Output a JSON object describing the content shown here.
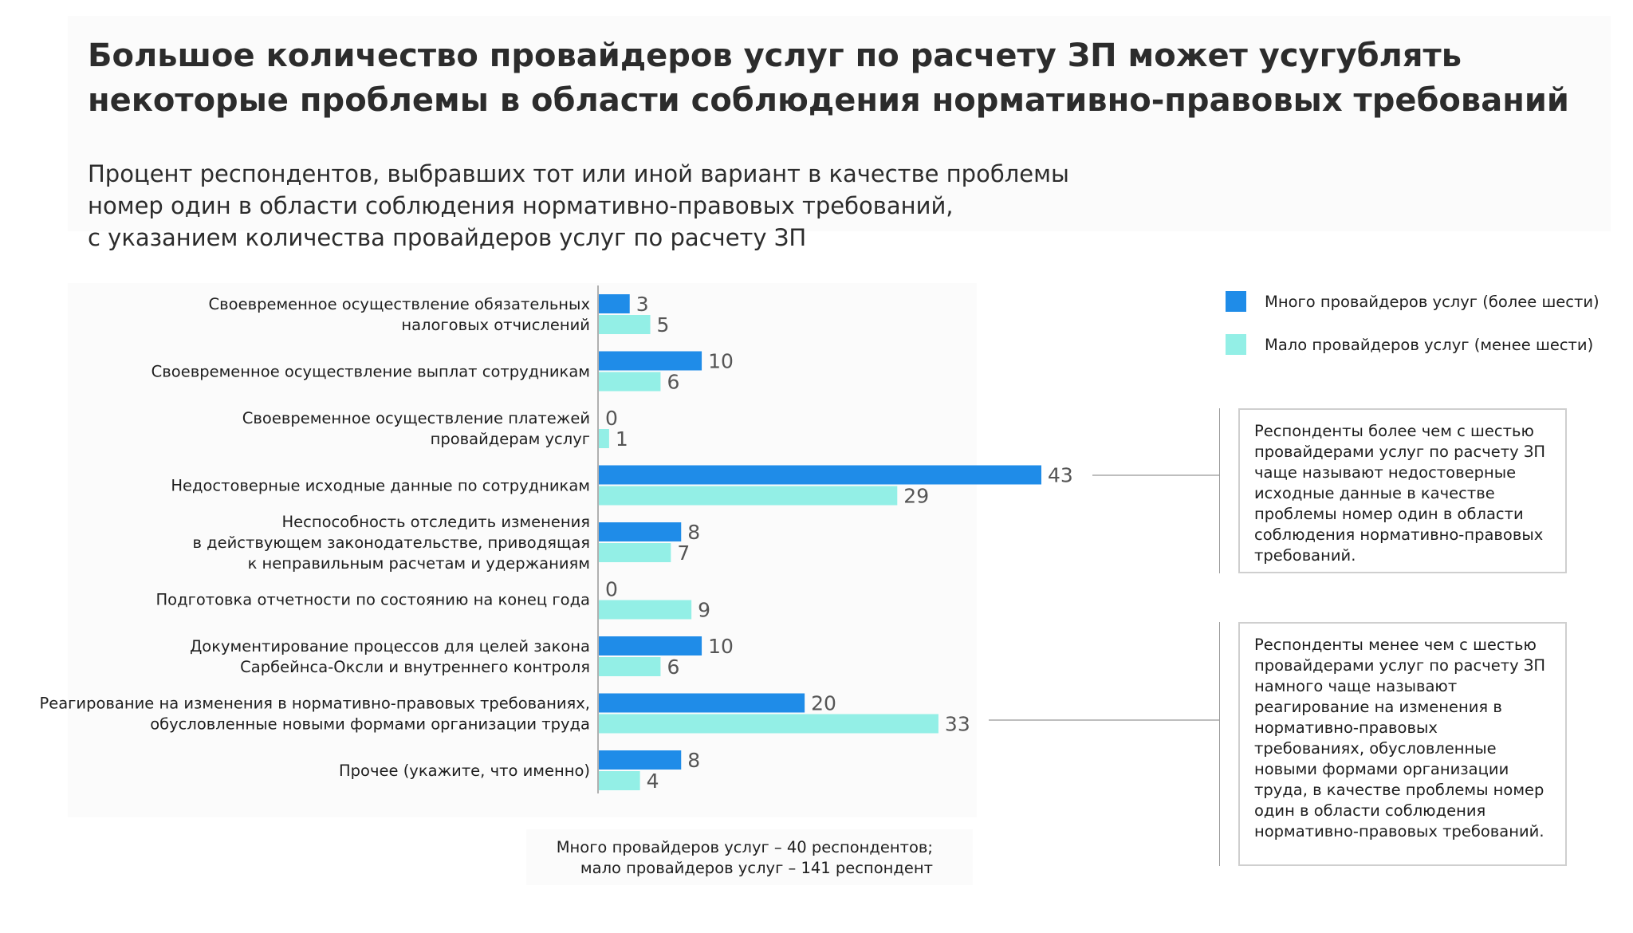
{
  "title": "Большое количество провайдеров услуг по расчету ЗП может усугублять некоторые проблемы в области соблюдения нормативно-правовых требований",
  "subtitle": {
    "line1": "Процент респондентов, выбравших тот или иной вариант в качестве проблемы",
    "line2": "номер один в области соблюдения нормативно-правовых требований,",
    "line3": "с указанием количества провайдеров услуг по расчету ЗП"
  },
  "colors": {
    "many": "#1f8ce8",
    "few": "#93efe6",
    "axis": "#b0b0b0",
    "value_text": "#555555"
  },
  "chart_data": {
    "type": "bar",
    "orientation": "horizontal",
    "categories": [
      [
        "Своевременное осуществление обязательных",
        "налоговых отчислений"
      ],
      [
        "Своевременное осуществление выплат сотрудникам"
      ],
      [
        "Своевременное осуществление платежей",
        "провайдерам услуг"
      ],
      [
        "Недостоверные исходные данные по сотрудникам"
      ],
      [
        "Неспособность отследить изменения",
        "в действующем законодательстве, приводящая",
        "к неправильным расчетам и удержаниям"
      ],
      [
        "Подготовка отчетности по состоянию на конец года"
      ],
      [
        "Документирование процессов для целей закона",
        "Сарбейнса-Оксли и внутреннего контроля"
      ],
      [
        "Реагирование на изменения в нормативно-правовых требованиях,",
        "обусловленные новыми формами организации труда"
      ],
      [
        "Прочее (укажите, что именно)"
      ]
    ],
    "series": [
      {
        "name": "Много провайдеров услуг (более шести)",
        "values": [
          3,
          10,
          0,
          43,
          8,
          0,
          10,
          20,
          8
        ]
      },
      {
        "name": "Мало провайдеров услуг (менее шести)",
        "values": [
          5,
          6,
          1,
          29,
          7,
          9,
          6,
          33,
          4
        ]
      }
    ],
    "xlim": [
      0,
      43
    ],
    "unit": "%",
    "legend_position": "top-right"
  },
  "callouts": [
    {
      "text": "Респонденты более чем с шестью провайдерами услуг по расчету ЗП чаще называют недостоверные исходные данные в качестве проблемы номер один в области соблюдения нормативно-правовых требований."
    },
    {
      "text": "Респонденты менее чем с шестью провайдерами услуг по расчету ЗП намного чаще называют реагирование на изменения в нормативно-правовых требованиях, обусловленные новыми формами организации труда, в качестве проблемы номер один в области соблюдения нормативно-правовых требований."
    }
  ],
  "footnote": {
    "line1": "Много провайдеров услуг – 40 респондентов;",
    "line2": "мало провайдеров услуг – 141 респондент"
  }
}
